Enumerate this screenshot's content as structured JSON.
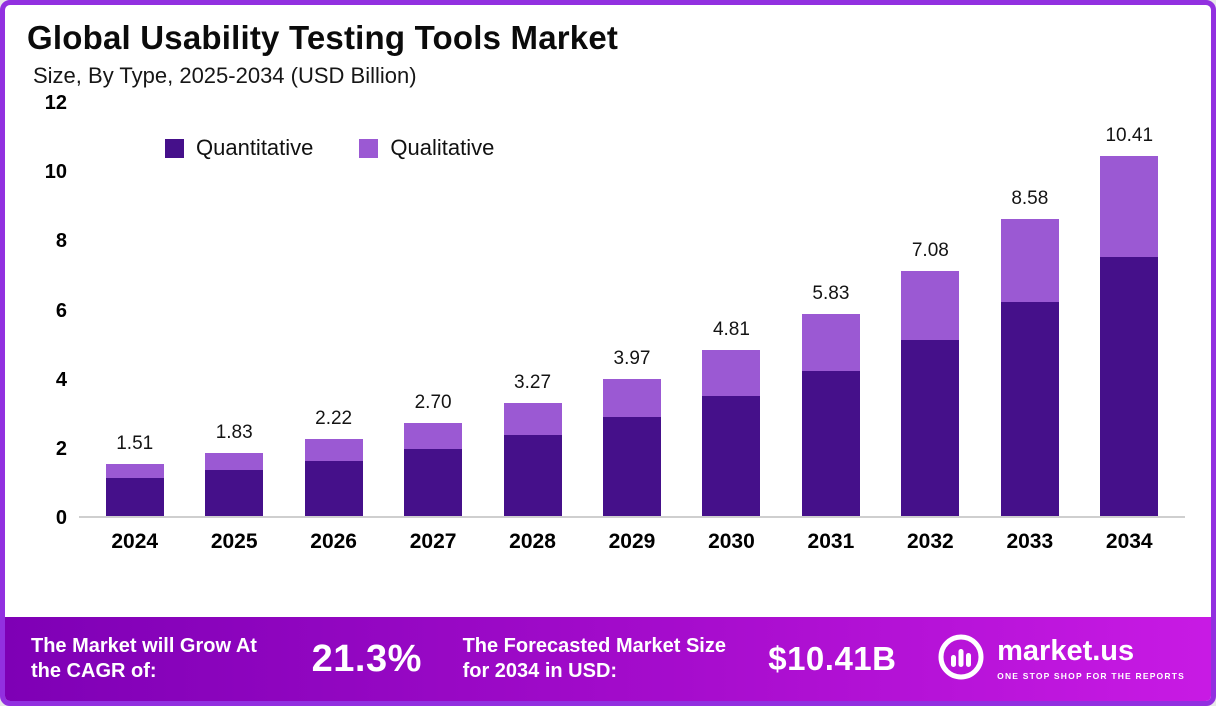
{
  "title": "Global Usability Testing Tools Market",
  "subtitle": "Size, By Type, 2025-2034 (USD Billion)",
  "colors": {
    "quantitative": "#45108A",
    "qualitative": "#9B59D3",
    "frame_border": "#9230E0",
    "axis_line": "#CFCFCF",
    "footer_gradient_start": "#7E00B5",
    "footer_gradient_end": "#C81AE4"
  },
  "chart_data": {
    "type": "bar",
    "stacked": true,
    "title": "Global Usability Testing Tools Market",
    "subtitle": "Size, By Type, 2025-2034 (USD Billion)",
    "xlabel": "",
    "ylabel": "USD Billion",
    "ylim": [
      0,
      12
    ],
    "yticks": [
      0,
      2,
      4,
      6,
      8,
      10,
      12
    ],
    "grid": false,
    "legend_position": "top-left",
    "categories": [
      "2024",
      "2025",
      "2026",
      "2027",
      "2028",
      "2029",
      "2030",
      "2031",
      "2032",
      "2033",
      "2034"
    ],
    "series": [
      {
        "name": "Quantitative",
        "color": "#45108A",
        "values": [
          1.09,
          1.32,
          1.6,
          1.94,
          2.35,
          2.86,
          3.46,
          4.2,
          5.1,
          6.18,
          7.5
        ]
      },
      {
        "name": "Qualitative",
        "color": "#9B59D3",
        "values": [
          0.42,
          0.51,
          0.62,
          0.76,
          0.92,
          1.11,
          1.35,
          1.63,
          1.98,
          2.4,
          2.91
        ]
      }
    ],
    "totals": [
      "1.51",
      "1.83",
      "2.22",
      "2.70",
      "3.27",
      "3.97",
      "4.81",
      "5.83",
      "7.08",
      "8.58",
      "10.41"
    ]
  },
  "footer": {
    "cagr_label": "The Market will Grow At the CAGR of:",
    "cagr_value": "21.3%",
    "forecast_label": "The Forecasted Market Size for 2034 in USD:",
    "forecast_value": "$10.41B",
    "brand_name": "market.us",
    "brand_tagline": "ONE STOP SHOP FOR THE REPORTS"
  }
}
